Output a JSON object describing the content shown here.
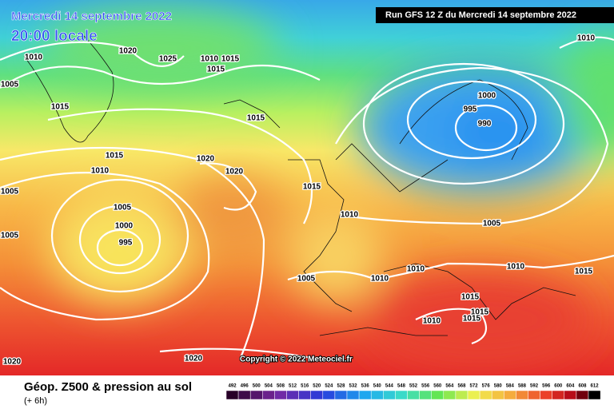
{
  "header": {
    "date": "Mercredi 14 septembre 2022",
    "time": "20:00 locale",
    "run": "Run GFS 12 Z du Mercredi 14 septembre 2022"
  },
  "copyright": "Copyright © 2022 Meteociel.fr",
  "footer": {
    "title": "Géop. Z500 & pression au sol",
    "lead": "(+ 6h)"
  },
  "isobar_labels": [
    "1010",
    "1020",
    "1025",
    "1010",
    "1015",
    "1015",
    "1005",
    "1015",
    "1015",
    "1015",
    "1010",
    "1020",
    "1020",
    "1005",
    "1015",
    "1010",
    "1005",
    "1000",
    "995",
    "1005",
    "1000",
    "995",
    "990",
    "1010",
    "1005",
    "1010",
    "1015",
    "1010",
    "1005",
    "1010",
    "1015",
    "1015",
    "1015",
    "1010",
    "1020",
    "1020"
  ],
  "legend": {
    "labels": [
      "492",
      "496",
      "500",
      "504",
      "508",
      "512",
      "516",
      "520",
      "524",
      "528",
      "532",
      "536",
      "540",
      "544",
      "548",
      "552",
      "556",
      "560",
      "564",
      "568",
      "572",
      "576",
      "580",
      "584",
      "588",
      "592",
      "596",
      "600",
      "604",
      "608",
      "612"
    ]
  }
}
